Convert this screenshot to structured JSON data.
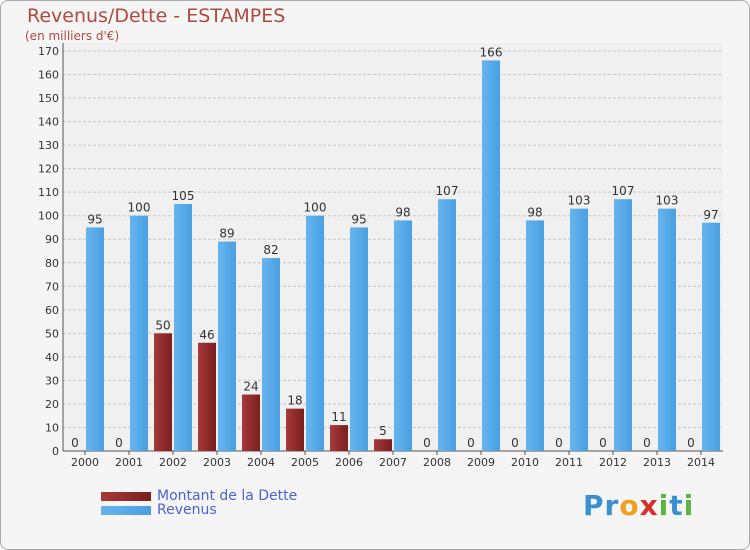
{
  "chart_data": {
    "type": "bar",
    "title": "Revenus/Dette - ESTAMPES",
    "subtitle": "(en milliers d'€)",
    "categories": [
      "2000",
      "2001",
      "2002",
      "2003",
      "2004",
      "2005",
      "2006",
      "2007",
      "2008",
      "2009",
      "2010",
      "2011",
      "2012",
      "2013",
      "2014"
    ],
    "series": [
      {
        "name": "Montant de la Dette",
        "color": "#7a1e1e",
        "values": [
          0,
          0,
          50,
          46,
          24,
          18,
          11,
          5,
          0,
          0,
          0,
          0,
          0,
          0,
          0
        ]
      },
      {
        "name": "Revenus",
        "color": "#4a9fe0",
        "values": [
          95,
          100,
          105,
          89,
          82,
          100,
          95,
          98,
          107,
          166,
          98,
          103,
          107,
          103,
          97
        ]
      }
    ],
    "ylim": [
      0,
      170
    ],
    "yticks": [
      0,
      10,
      20,
      30,
      40,
      50,
      60,
      70,
      80,
      90,
      100,
      110,
      120,
      130,
      140,
      150,
      160,
      170
    ],
    "xlabel": "",
    "ylabel": "",
    "grid": true,
    "legend": "bottom-left"
  },
  "logo": {
    "letters": [
      {
        "char": "P",
        "color": "#3a8fd0"
      },
      {
        "char": "r",
        "color": "#3a8fd0"
      },
      {
        "char": "o",
        "color": "#f0a020"
      },
      {
        "char": "x",
        "color": "#d8302a"
      },
      {
        "char": "i",
        "color": "#5bb540"
      },
      {
        "char": "t",
        "color": "#3a8fd0"
      },
      {
        "char": "i",
        "color": "#5bb540"
      }
    ]
  }
}
